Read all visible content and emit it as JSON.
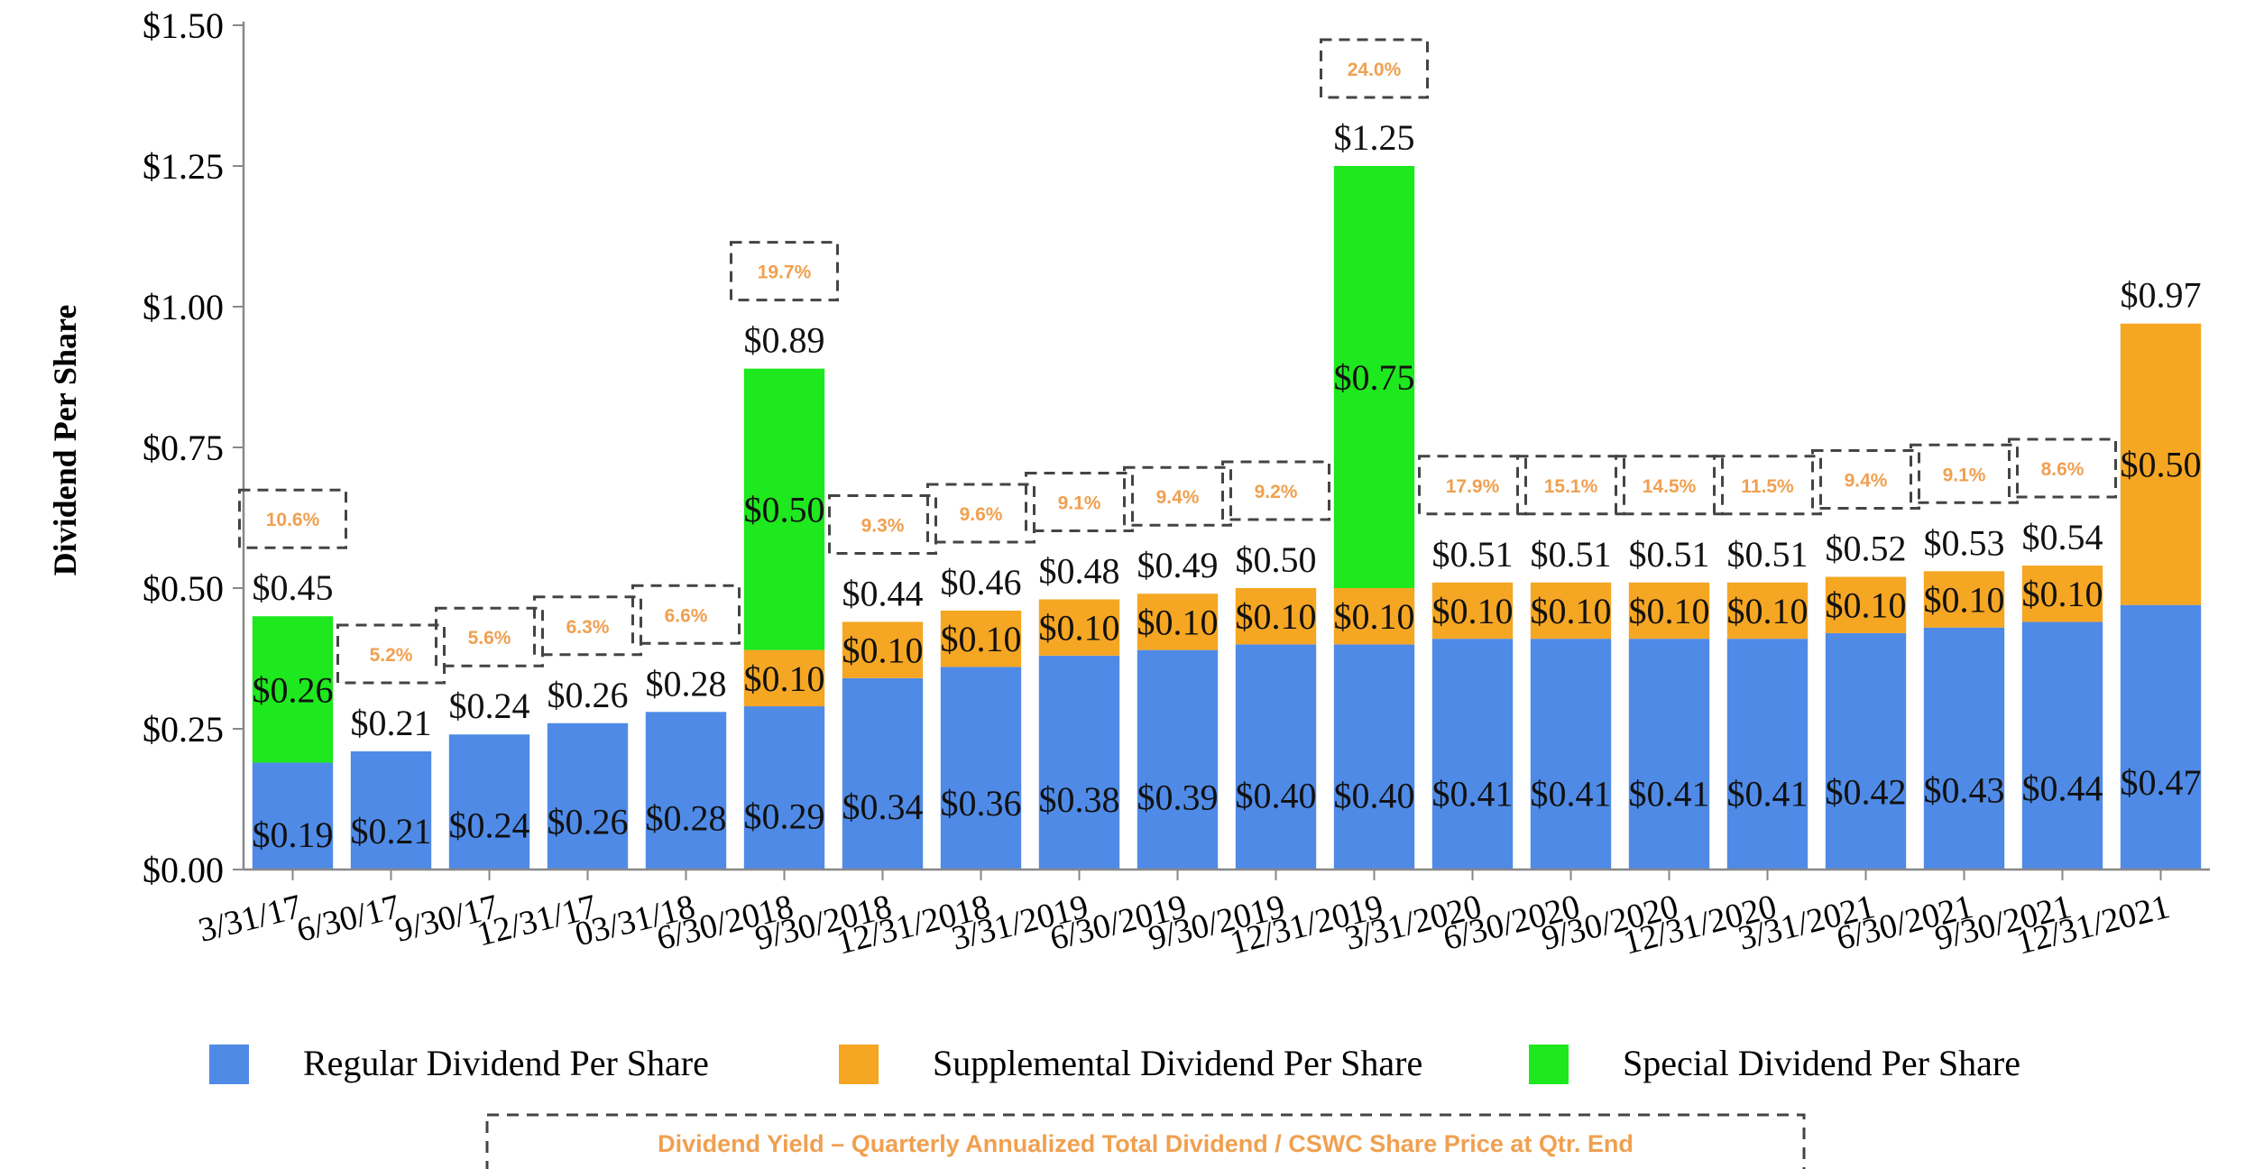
{
  "chart_data": {
    "type": "bar",
    "stacked": true,
    "ylabel": "Dividend Per Share",
    "ylim": [
      0,
      1.5
    ],
    "yticks": [
      "$0.00",
      "$0.25",
      "$0.50",
      "$0.75",
      "$1.00",
      "$1.25",
      "$1.50"
    ],
    "categories": [
      "3/31/17",
      "6/30/17",
      "9/30/17",
      "12/31/17",
      "03/31/18",
      "6/30/2018",
      "9/30/2018",
      "12/31/2018",
      "3/31/2019",
      "6/30/2019",
      "9/30/2019",
      "12/31/2019",
      "3/31/2020",
      "6/30/2020",
      "9/30/2020",
      "12/31/2020",
      "3/31/2021",
      "6/30/2021",
      "9/30/2021",
      "12/31/2021"
    ],
    "series": [
      {
        "name": "Regular Dividend Per Share",
        "color": "#4f8ae6",
        "values": [
          0.19,
          0.21,
          0.24,
          0.26,
          0.28,
          0.29,
          0.34,
          0.36,
          0.38,
          0.39,
          0.4,
          0.4,
          0.41,
          0.41,
          0.41,
          0.41,
          0.42,
          0.43,
          0.44,
          0.47
        ],
        "labels": [
          "$0.19",
          "$0.21",
          "$0.24",
          "$0.26",
          "$0.28",
          "$0.29",
          "$0.34",
          "$0.36",
          "$0.38",
          "$0.39",
          "$0.40",
          "$0.40",
          "$0.41",
          "$0.41",
          "$0.41",
          "$0.41",
          "$0.42",
          "$0.43",
          "$0.44",
          "$0.47"
        ]
      },
      {
        "name": "Supplemental Dividend Per Share",
        "color": "#f5a623",
        "values": [
          0,
          0,
          0,
          0,
          0,
          0.1,
          0.1,
          0.1,
          0.1,
          0.1,
          0.1,
          0.1,
          0.1,
          0.1,
          0.1,
          0.1,
          0.1,
          0.1,
          0.1,
          0.5
        ],
        "labels": [
          "",
          "",
          "",
          "",
          "",
          "$0.10",
          "$0.10",
          "$0.10",
          "$0.10",
          "$0.10",
          "$0.10",
          "$0.10",
          "$0.10",
          "$0.10",
          "$0.10",
          "$0.10",
          "$0.10",
          "$0.10",
          "$0.10",
          "$0.50"
        ]
      },
      {
        "name": "Special Dividend Per Share",
        "color": "#1ee81e",
        "values": [
          0.26,
          0,
          0,
          0,
          0,
          0.5,
          0,
          0,
          0,
          0,
          0,
          0.75,
          0,
          0,
          0,
          0,
          0,
          0,
          0,
          0
        ],
        "labels": [
          "$0.26",
          "",
          "",
          "",
          "",
          "$0.50",
          "",
          "",
          "",
          "",
          "",
          "$0.75",
          "",
          "",
          "",
          "",
          "",
          "",
          "",
          ""
        ]
      }
    ],
    "totals": [
      0.45,
      0.21,
      0.24,
      0.26,
      0.28,
      0.89,
      0.44,
      0.46,
      0.48,
      0.49,
      0.5,
      1.25,
      0.51,
      0.51,
      0.51,
      0.51,
      0.52,
      0.53,
      0.54,
      0.97
    ],
    "total_labels": [
      "$0.45",
      "$0.21",
      "$0.24",
      "$0.26",
      "$0.28",
      "$0.89",
      "$0.44",
      "$0.46",
      "$0.48",
      "$0.49",
      "$0.50",
      "$1.25",
      "$0.51",
      "$0.51",
      "$0.51",
      "$0.51",
      "$0.52",
      "$0.53",
      "$0.54",
      "$0.97"
    ],
    "yield_labels": [
      "10.6%",
      "5.2%",
      "5.6%",
      "6.3%",
      "6.6%",
      "19.7%",
      "9.3%",
      "9.6%",
      "9.1%",
      "9.4%",
      "9.2%",
      "24.0%",
      "17.9%",
      "15.1%",
      "14.5%",
      "11.5%",
      "9.4%",
      "9.1%",
      "8.6%",
      ""
    ],
    "yield_color": "#f0a050",
    "yield_note": "Dividend Yield – Quarterly Annualized Total Dividend / CSWC Share Price at Qtr. End",
    "legend_position": "bottom"
  }
}
